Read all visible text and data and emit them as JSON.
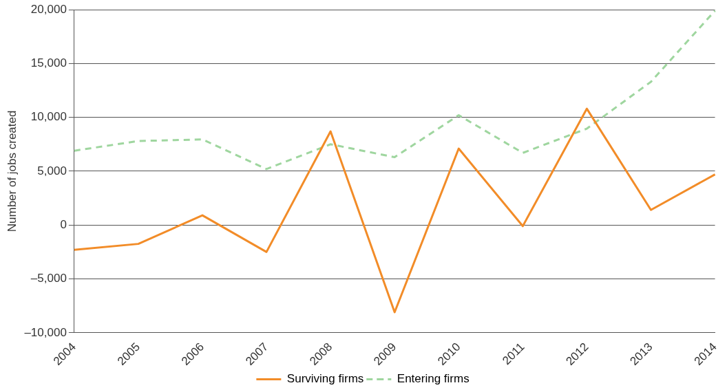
{
  "chart_data": {
    "type": "line",
    "ylabel": "Number of jobs created",
    "categories": [
      "2004",
      "2005",
      "2006",
      "2007",
      "2008",
      "2009",
      "2010",
      "2011",
      "2012",
      "2013",
      "2014"
    ],
    "series": [
      {
        "name": "Surviving firms",
        "color": "#f28c28",
        "line_style": "solid",
        "values": [
          -2300,
          -1750,
          900,
          -2500,
          8700,
          -8100,
          7100,
          -100,
          10800,
          1400,
          4700
        ]
      },
      {
        "name": "Entering firms",
        "color": "#9fd69f",
        "line_style": "dashed",
        "values": [
          6900,
          7800,
          7950,
          5200,
          7500,
          6300,
          10200,
          6700,
          8950,
          13300,
          19900
        ]
      }
    ],
    "ylim": [
      -10000,
      20000
    ],
    "yticks": [
      {
        "value": -10000,
        "label": "–10,000"
      },
      {
        "value": -5000,
        "label": "–5,000"
      },
      0,
      {
        "value": 5000,
        "label": "5,000"
      },
      {
        "value": 10000,
        "label": "10,000"
      },
      {
        "value": 15000,
        "label": "15,000"
      },
      {
        "value": 20000,
        "label": "20,000"
      }
    ],
    "grid": "y",
    "legend": "bottom",
    "marker": "none"
  }
}
